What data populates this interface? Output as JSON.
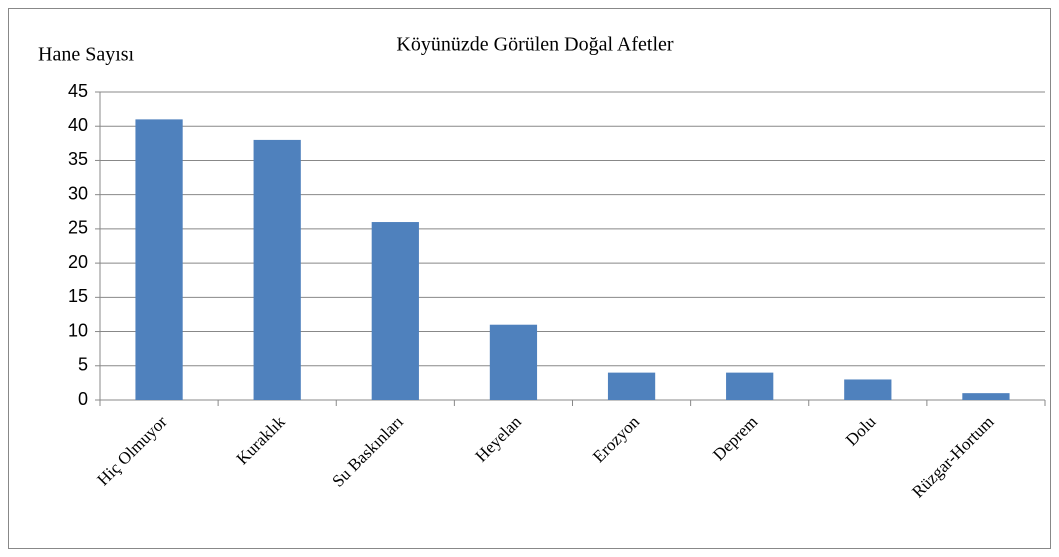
{
  "chart_data": {
    "type": "bar",
    "title": "Köyünüzde Görülen Doğal Afetler",
    "y_label": "Hane Sayısı",
    "categories": [
      "Hiç Olmuyor",
      "Kuraklık",
      "Su Baskınları",
      "Heyelan",
      "Erozyon",
      "Deprem",
      "Dolu",
      "Rüzgar-Hortum"
    ],
    "values": [
      41,
      38,
      26,
      11,
      4,
      4,
      3,
      1
    ],
    "color": "#4f81bd",
    "ylim": [
      0,
      45
    ],
    "yticks": [
      0,
      5,
      10,
      15,
      20,
      25,
      30,
      35,
      40,
      45
    ],
    "grid": true
  }
}
